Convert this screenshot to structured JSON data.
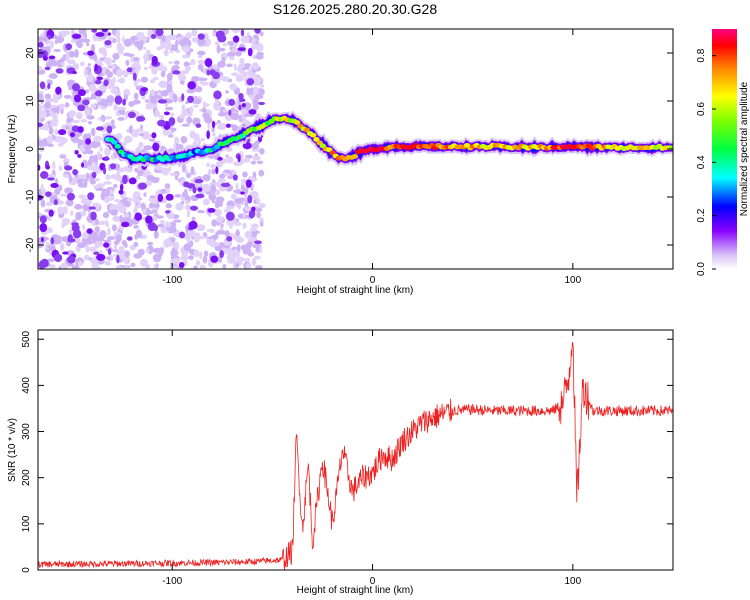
{
  "title": "S126.2025.280.20.30.G28",
  "chart_data": [
    {
      "type": "heatmap",
      "xlabel": "Height of straight line (km)",
      "ylabel": "Frequency (Hz)",
      "xlim": [
        -167,
        150
      ],
      "ylim": [
        -25,
        25
      ],
      "xticks": [
        -100,
        0,
        100
      ],
      "yticks": [
        -20,
        -10,
        0,
        10,
        20
      ],
      "colorbar": {
        "label": "Normalized spectral amplitude",
        "range": [
          0,
          0.9
        ],
        "ticks": [
          0.0,
          0.2,
          0.4,
          0.6,
          0.8
        ],
        "colors": [
          "#e8d8f8",
          "#8000ff",
          "#0000ff",
          "#00ffff",
          "#00ff00",
          "#ffff00",
          "#ff8000",
          "#ff0000",
          "#ff0080"
        ]
      },
      "ridge": {
        "x": [
          -130,
          -125,
          -120,
          -110,
          -100,
          -90,
          -80,
          -70,
          -60,
          -50,
          -45,
          -40,
          -35,
          -30,
          -25,
          -20,
          -15,
          -10,
          -5,
          0,
          10,
          20,
          40,
          60,
          80,
          100,
          120,
          150
        ],
        "y": [
          2,
          -1,
          -2,
          -2,
          -2,
          -1,
          0,
          2,
          4,
          6,
          6.5,
          6,
          4.5,
          3,
          1,
          -1,
          -2,
          -1.5,
          -0.5,
          0,
          0.5,
          0.5,
          0.5,
          0.5,
          0.3,
          0.5,
          0.3,
          0.3
        ],
        "amplitude": [
          0.35,
          0.35,
          0.3,
          0.35,
          0.3,
          0.3,
          0.35,
          0.4,
          0.45,
          0.5,
          0.55,
          0.55,
          0.6,
          0.6,
          0.6,
          0.65,
          0.65,
          0.7,
          0.75,
          0.85,
          0.7,
          0.75,
          0.65,
          0.6,
          0.6,
          0.8,
          0.6,
          0.55
        ]
      },
      "noise_region": {
        "x": [
          -167,
          -55
        ],
        "y": [
          -25,
          25
        ]
      }
    },
    {
      "type": "line",
      "xlabel": "Height of straight line (km)",
      "ylabel": "SNR (10 * v/v)",
      "xlim": [
        -167,
        150
      ],
      "ylim": [
        0,
        520
      ],
      "xticks": [
        -100,
        0,
        100
      ],
      "yticks": [
        0,
        100,
        200,
        300,
        400,
        500
      ],
      "color": "#ee2222",
      "x": [
        -167,
        -120,
        -80,
        -60,
        -45,
        -40,
        -38,
        -35,
        -32,
        -30,
        -25,
        -20,
        -15,
        -10,
        -5,
        0,
        5,
        10,
        15,
        20,
        25,
        30,
        40,
        50,
        60,
        70,
        80,
        90,
        95,
        98,
        100,
        102,
        105,
        110,
        120,
        130,
        140,
        150
      ],
      "values": [
        12,
        14,
        16,
        18,
        22,
        40,
        290,
        90,
        230,
        60,
        240,
        100,
        260,
        170,
        200,
        210,
        250,
        240,
        280,
        300,
        320,
        330,
        345,
        348,
        345,
        345,
        345,
        345,
        360,
        420,
        520,
        150,
        400,
        345,
        345,
        345,
        345,
        345
      ],
      "noise_amplitude": 18
    }
  ]
}
